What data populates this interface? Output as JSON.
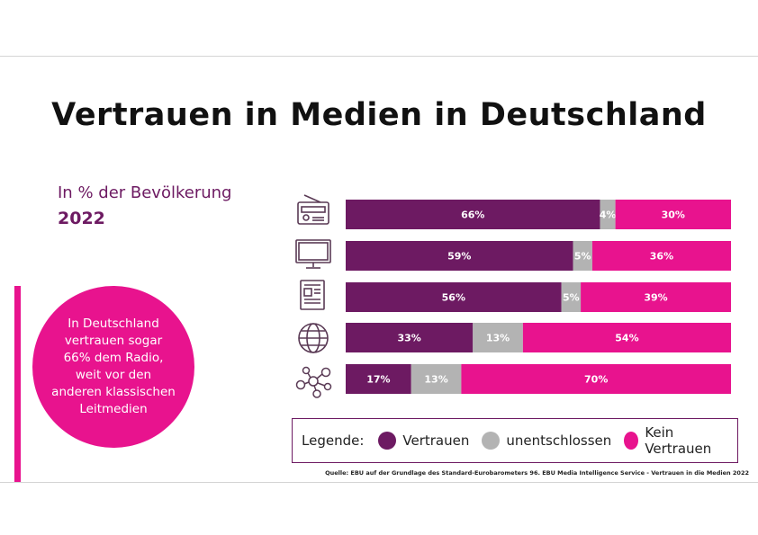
{
  "slide": {
    "title": "Vertrauen in Medien in Deutschland",
    "subtitle": "In % der Bevölkerung",
    "year": "2022",
    "callout": "In Deutschland\nvertrauen sogar\n66% dem Radio,\nweit vor den\nanderen klassischen\nLeitmedien",
    "source": "Quelle: EBU auf der Grundlage des Standard-Eurobarometers 96. EBU Media Intelligence Service - Vertrauen in die Medien 2022"
  },
  "colors": {
    "vertrauen": "#6d1a62",
    "unentschlossen": "#b3b3b3",
    "kein_vertrauen": "#e8138e",
    "icon": "#5a3a55"
  },
  "icons": [
    "radio-icon",
    "tv-icon",
    "newspaper-icon",
    "globe-icon",
    "social-network-icon"
  ],
  "legend": {
    "title": "Legende:",
    "items": [
      "Vertrauen",
      "unentschlossen",
      "Kein Vertrauen"
    ]
  },
  "chart_data": {
    "type": "bar",
    "stacked": true,
    "orientation": "horizontal",
    "categories": [
      "Radio",
      "Fernsehen",
      "Presse",
      "Internet",
      "Soziale Netzwerke"
    ],
    "series": [
      {
        "name": "Vertrauen",
        "values": [
          66,
          59,
          56,
          33,
          17
        ]
      },
      {
        "name": "unentschlossen",
        "values": [
          4,
          5,
          5,
          13,
          13
        ]
      },
      {
        "name": "Kein Vertrauen",
        "values": [
          30,
          36,
          39,
          54,
          70
        ]
      }
    ],
    "data_label_suffix": "%",
    "xlim": [
      0,
      100
    ],
    "grid": false,
    "legend_position": "bottom"
  }
}
